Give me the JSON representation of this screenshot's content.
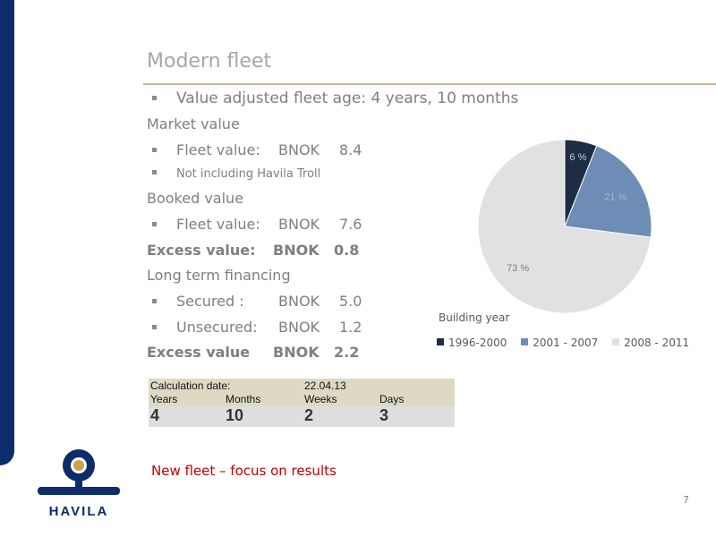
{
  "slide": {
    "title": "Modern fleet",
    "page_number": "7",
    "footer": "New fleet – focus on results",
    "logo_text": "HAVILA"
  },
  "lines": {
    "age": "Value adjusted fleet age: 4 years, 10 months",
    "market_value": "Market value",
    "market_fleet_label": "Fleet value:",
    "market_fleet_unit": "BNOK",
    "market_fleet_value": "8.4",
    "market_note": "Not including Havila Troll",
    "booked_value": "Booked value",
    "booked_fleet_label": "Fleet value:",
    "booked_fleet_unit": "BNOK",
    "booked_fleet_value": "7.6",
    "excess1_label": "Excess value:",
    "excess1_unit": "BNOK",
    "excess1_value": "0.8",
    "long_term": "Long term financing",
    "secured_label": "Secured :",
    "secured_unit": "BNOK",
    "secured_value": "5.0",
    "unsecured_label": "Unsecured:",
    "unsecured_unit": "BNOK",
    "unsecured_value": "1.2",
    "excess2_label": "Excess value",
    "excess2_unit": "BNOK",
    "excess2_value": "2.2"
  },
  "calc": {
    "label": "Calculation date:",
    "date": "22.04.13",
    "headers": [
      "Years",
      "Months",
      "Weeks",
      "Days"
    ],
    "values": [
      "4",
      "10",
      "2",
      "3"
    ]
  },
  "colors": {
    "navy": "#1f2d44",
    "steel_blue": "#6e8db6",
    "light_gray": "#e1e1e1",
    "footer_red": "#c00000",
    "brand_blue": "#0c2c6c"
  },
  "chart_data": {
    "type": "pie",
    "title": "Building year",
    "categories": [
      "1996-2000",
      "2001 - 2007",
      "2008 - 2011"
    ],
    "values": [
      6,
      21,
      73
    ],
    "labels": [
      "6 %",
      "21 %",
      "73 %"
    ],
    "colors": [
      "#1f2d44",
      "#6e8db6",
      "#e1e1e1"
    ],
    "legend": "bottom"
  }
}
